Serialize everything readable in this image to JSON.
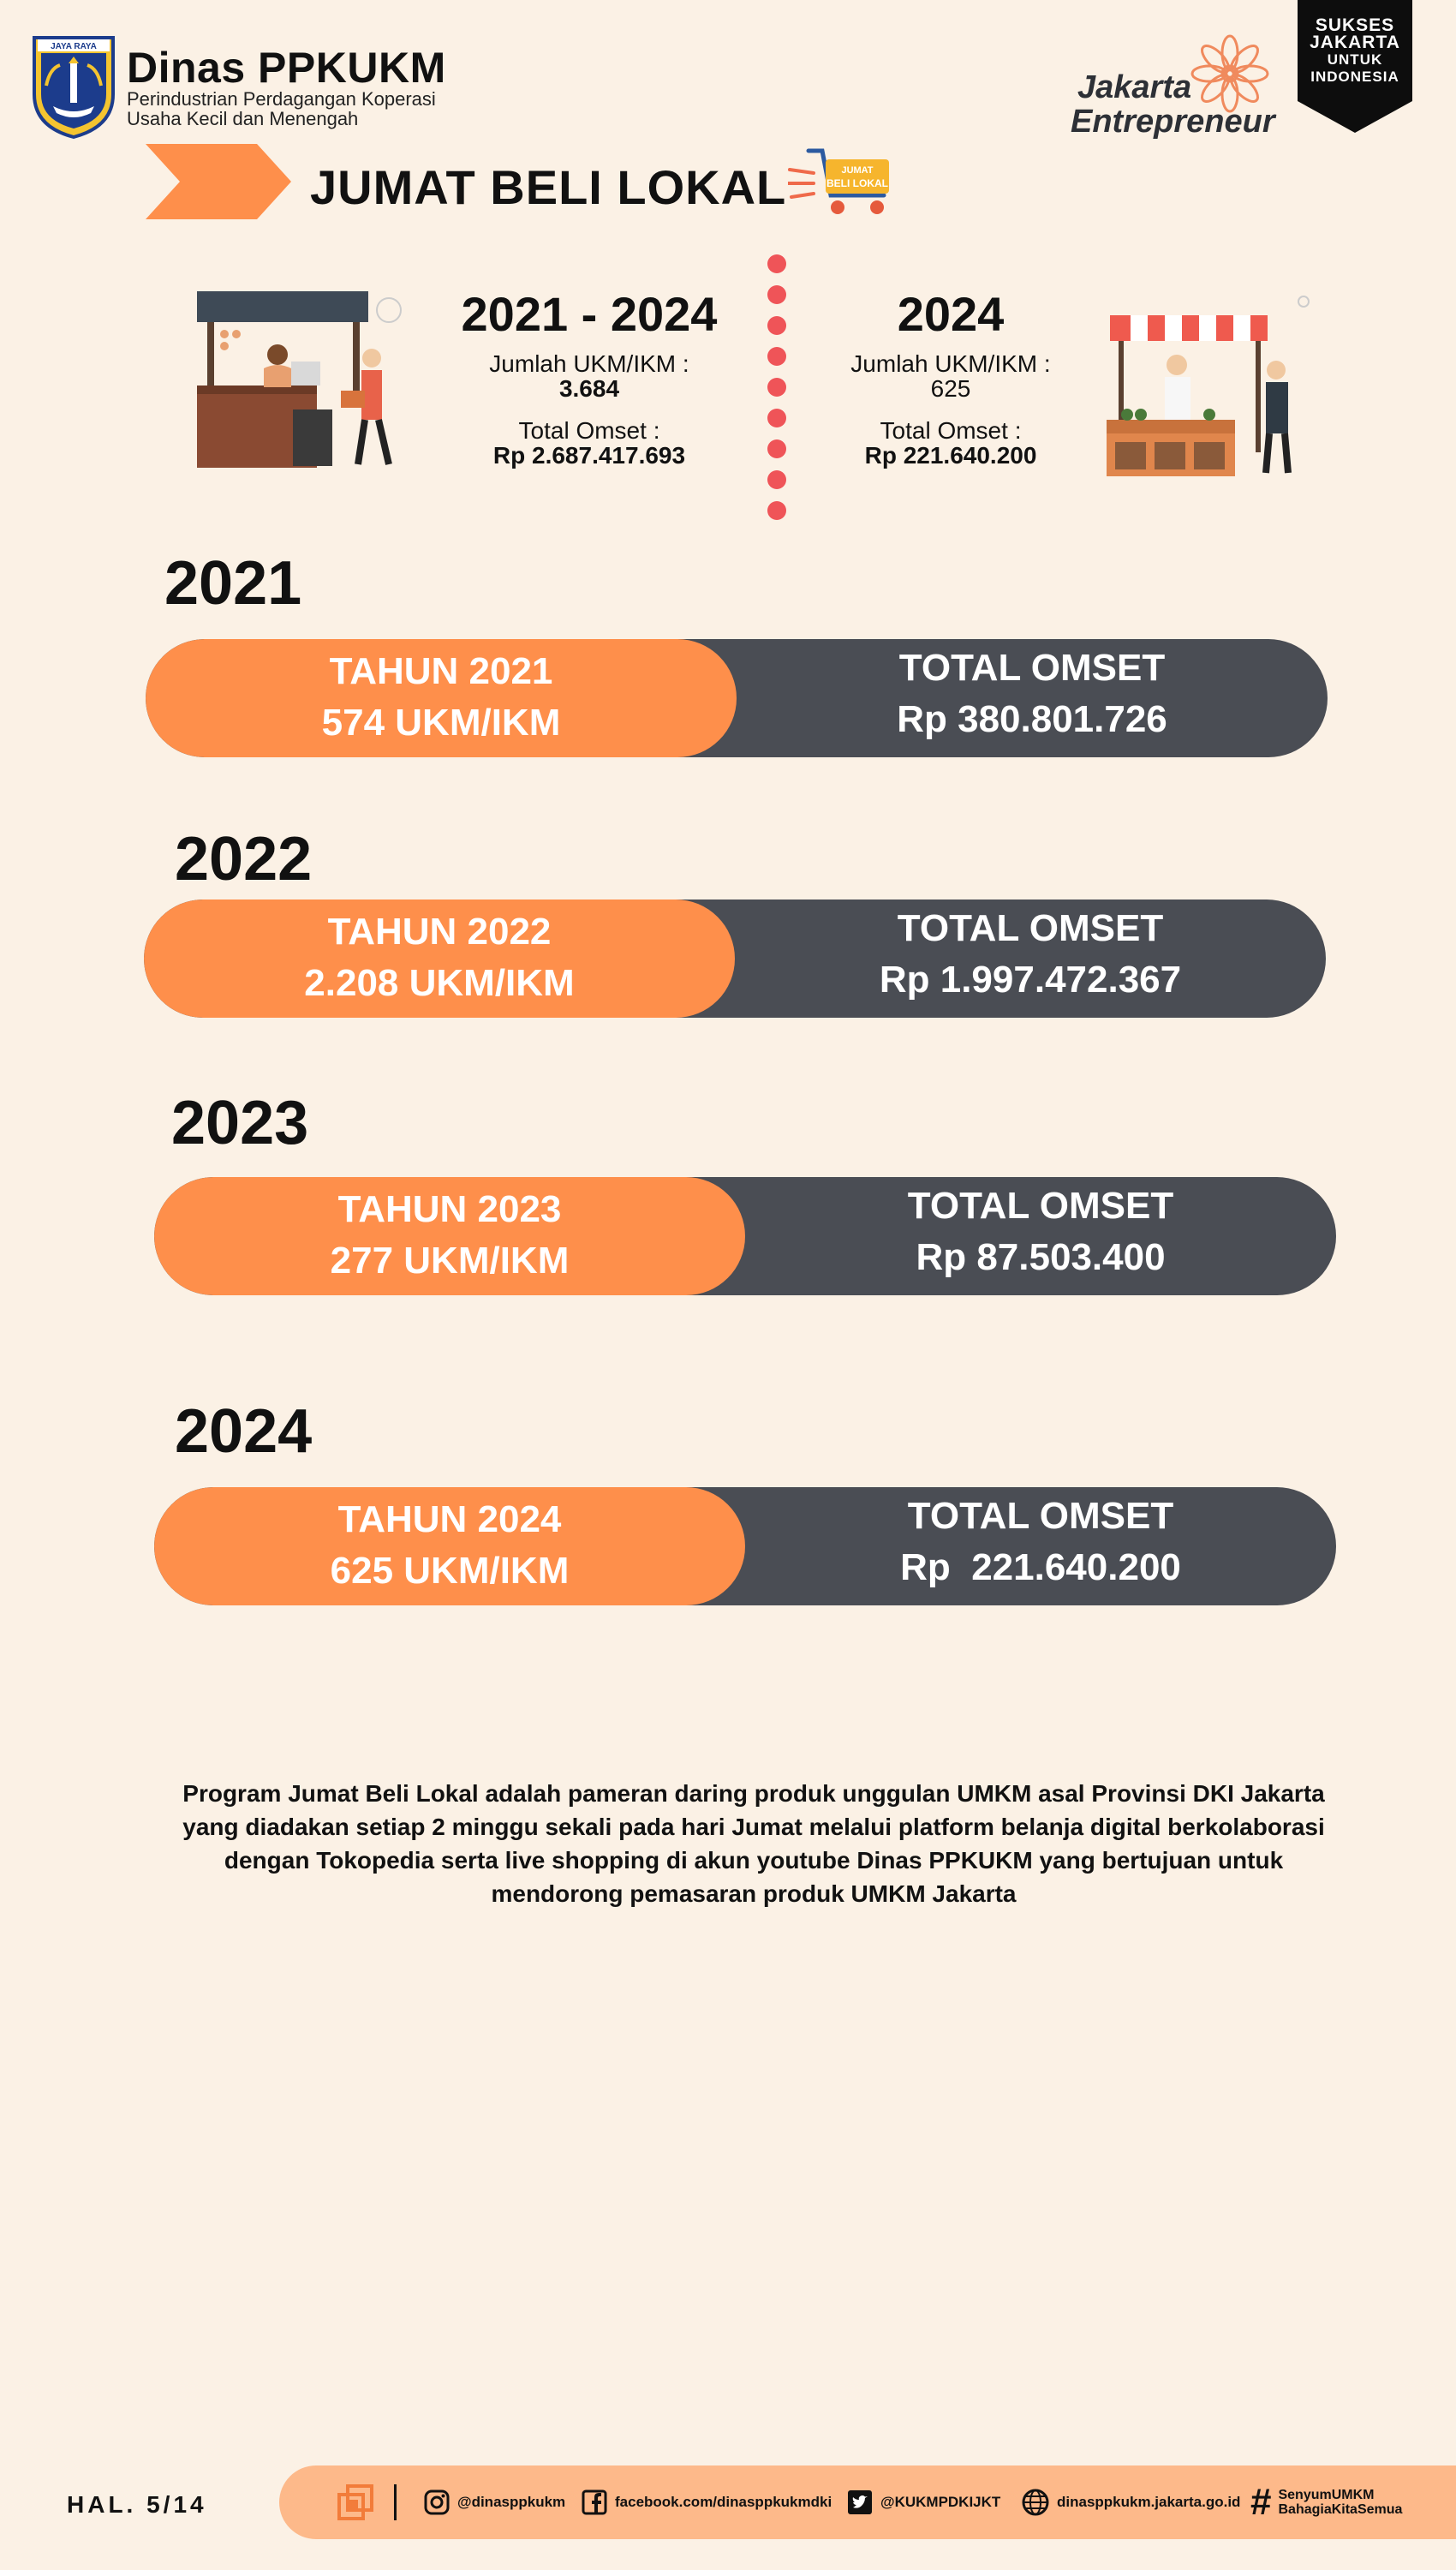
{
  "header": {
    "crest_label": "JAYA RAYA",
    "org_title": "Dinas PPKUKM",
    "org_sub_1": "Perindustrian Perdagangan Koperasi",
    "org_sub_2": "Usaha Kecil dan Menengah",
    "je_line_1": "Jakarta",
    "je_line_2": "Entrepreneur",
    "sukses_1": "SUKSES",
    "sukses_2": "JAKARTA",
    "sukses_3": "UNTUK",
    "sukses_4": "INDONESIA"
  },
  "title": {
    "text": "JUMAT BELI LOKAL",
    "cart_label_1": "JUMAT",
    "cart_label_2": "BELI LOKAL"
  },
  "summary": {
    "left": {
      "period": "2021 - 2024",
      "count_label": "Jumlah UKM/IKM :",
      "count_value": "3.684",
      "omset_label": "Total Omset :",
      "omset_value": "Rp 2.687.417.693"
    },
    "right": {
      "period": "2024",
      "count_label": "Jumlah UKM/IKM :",
      "count_value": "625",
      "omset_label": "Total Omset :",
      "omset_value": "Rp 221.640.200"
    }
  },
  "years": [
    {
      "heading": "2021",
      "left_1": "TAHUN 2021",
      "left_2": "574 UKM/IKM",
      "right_1": "TOTAL OMSET",
      "right_2": "Rp 380.801.726"
    },
    {
      "heading": "2022",
      "left_1": "TAHUN 2022",
      "left_2": "2.208 UKM/IKM",
      "right_1": "TOTAL OMSET",
      "right_2": "Rp 1.997.472.367"
    },
    {
      "heading": "2023",
      "left_1": "TAHUN 2023",
      "left_2": "277 UKM/IKM",
      "right_1": "TOTAL OMSET",
      "right_2": "Rp 87.503.400"
    },
    {
      "heading": "2024",
      "left_1": "TAHUN 2024",
      "left_2": "625 UKM/IKM",
      "right_1": "TOTAL OMSET",
      "right_2": "Rp  221.640.200"
    }
  ],
  "description": "Program Jumat Beli Lokal adalah pameran daring produk unggulan UMKM asal Provinsi DKI Jakarta yang diadakan setiap 2 minggu sekali pada hari Jumat melalui platform belanja digital berkolaborasi dengan Tokopedia serta live shopping di akun youtube Dinas PPKUKM yang bertujuan untuk mendorong pemasaran produk UMKM Jakarta",
  "footer": {
    "page": "HAL. 5/14",
    "instagram": "@dinasppkukm",
    "facebook": "facebook.com/dinasppkukmdki",
    "twitter": "@KUKMPDKIJKT",
    "website": "dinasppkukm.jakarta.go.id",
    "hashtag_1": "SenyumUMKM",
    "hashtag_2": "BahagiaKitaSemua"
  },
  "colors": {
    "background": "#fbf1e5",
    "orange": "#fe8f4b",
    "dark_gray": "#4a4d54",
    "dot_red": "#ef5458",
    "footer_bar": "#fdb98a"
  }
}
